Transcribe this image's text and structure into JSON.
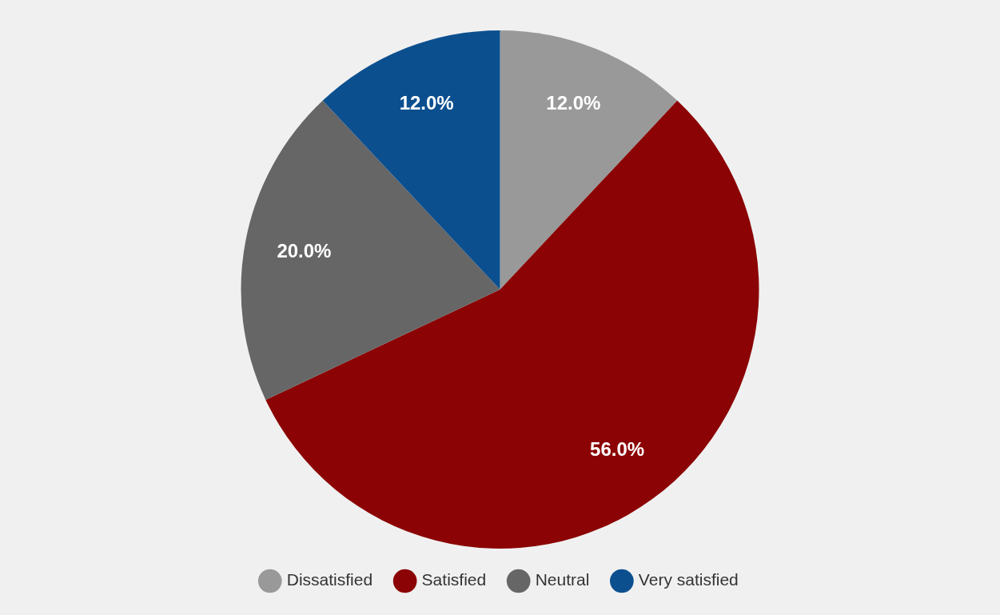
{
  "chart_data": {
    "type": "pie",
    "categories": [
      "Dissatisfied",
      "Satisfied",
      "Neutral",
      "Very satisfied"
    ],
    "values": [
      12,
      56,
      20,
      12
    ],
    "colors": [
      "#999999",
      "#8b0304",
      "#666666",
      "#0b4f8f"
    ],
    "value_labels": [
      "12.0%",
      "56.0%",
      "20.0%",
      "12.0%"
    ],
    "legend": "bottom"
  }
}
